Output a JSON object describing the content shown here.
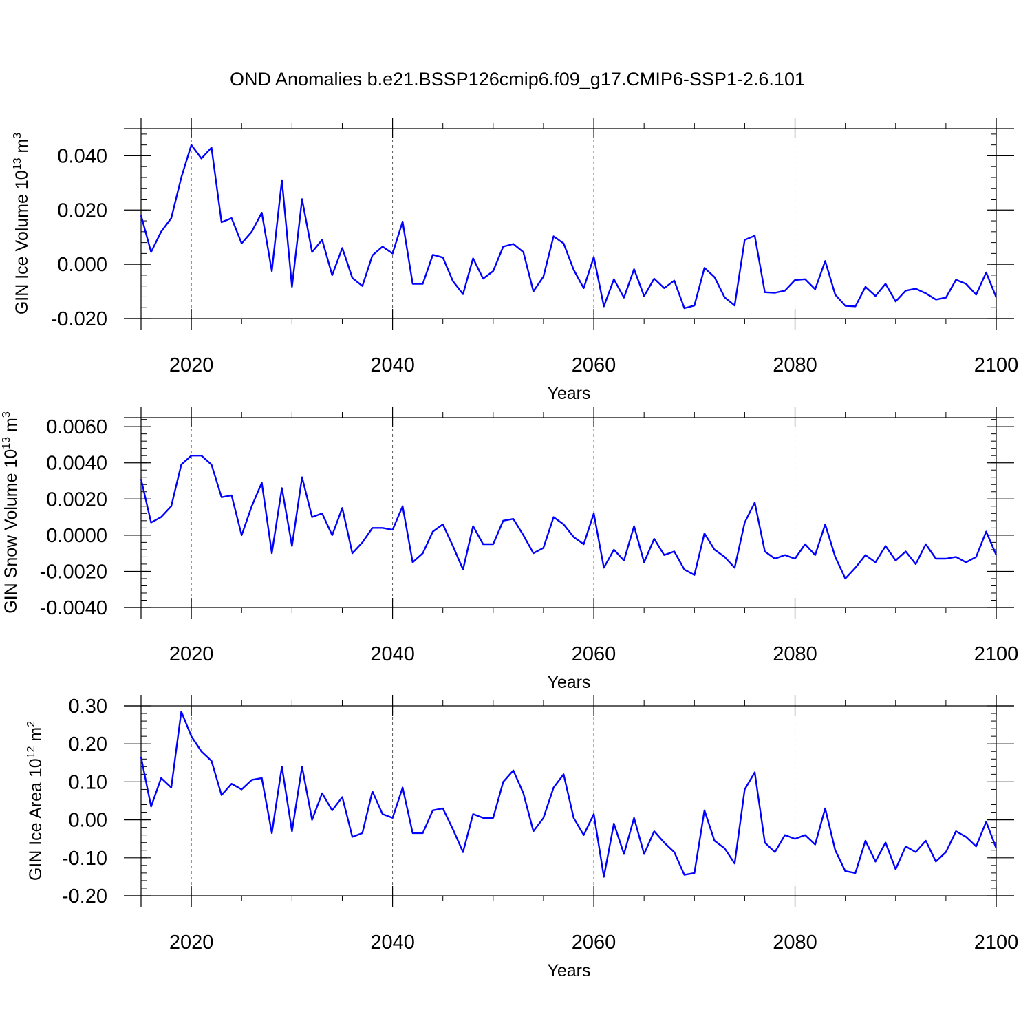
{
  "title": "OND Anomalies b.e21.BSSP126cmip6.f09_g17.CMIP6-SSP1-2.6.101",
  "colors": {
    "line": "#0000ff",
    "axis": "#000000",
    "grid": "#555555"
  },
  "chart_data": [
    {
      "type": "line",
      "ylabel_base": "GIN Ice Volume 10",
      "ylabel_exp": "13",
      "ylabel_unit": " m",
      "ylabel_unit_exp": "3",
      "xlabel": "Years",
      "xlim": [
        2015,
        2100
      ],
      "ylim": [
        -0.02,
        0.05
      ],
      "yticks": [
        -0.02,
        0.0,
        0.02,
        0.04
      ],
      "ytick_labels": [
        "-0.020",
        "0.000",
        "0.020",
        "0.040"
      ],
      "xticks": [
        2020,
        2040,
        2060,
        2080,
        2100
      ],
      "xtick_labels": [
        "2020",
        "2040",
        "2060",
        "2080",
        "2100"
      ],
      "grid": "vertical dashed at major x ticks",
      "x_start": 2015,
      "values": [
        0.018,
        0.0045,
        0.012,
        0.017,
        0.032,
        0.044,
        0.039,
        0.043,
        0.0155,
        0.017,
        0.0077,
        0.012,
        0.019,
        -0.0025,
        0.031,
        -0.0083,
        0.024,
        0.0045,
        0.009,
        -0.004,
        0.006,
        -0.005,
        -0.008,
        0.0033,
        0.0065,
        0.004,
        0.0157,
        -0.0072,
        -0.0072,
        0.0035,
        0.0025,
        -0.0062,
        -0.011,
        0.0022,
        -0.0053,
        -0.0025,
        0.0065,
        0.0075,
        0.0045,
        -0.01,
        -0.0045,
        0.0103,
        0.0077,
        -0.002,
        -0.0088,
        0.0027,
        -0.0155,
        -0.0055,
        -0.0123,
        -0.0018,
        -0.0117,
        -0.0053,
        -0.0088,
        -0.006,
        -0.0162,
        -0.0152,
        -0.0013,
        -0.0047,
        -0.0122,
        -0.0152,
        0.009,
        0.0105,
        -0.0103,
        -0.0105,
        -0.0097,
        -0.0058,
        -0.0055,
        -0.0092,
        0.0012,
        -0.0112,
        -0.0153,
        -0.0155,
        -0.0083,
        -0.0117,
        -0.0072,
        -0.0137,
        -0.0097,
        -0.009,
        -0.0107,
        -0.013,
        -0.0123,
        -0.0057,
        -0.0072,
        -0.0112,
        -0.003,
        -0.0122
      ]
    },
    {
      "type": "line",
      "ylabel_base": "GIN Snow Volume 10",
      "ylabel_exp": "13",
      "ylabel_unit": " m",
      "ylabel_unit_exp": "3",
      "xlabel": "Years",
      "xlim": [
        2015,
        2100
      ],
      "ylim": [
        -0.004,
        0.0065
      ],
      "yticks": [
        -0.004,
        -0.002,
        0.0,
        0.002,
        0.004,
        0.006
      ],
      "ytick_labels": [
        "-0.0040",
        "-0.0020",
        "0.0000",
        "0.0020",
        "0.0040",
        "0.0060"
      ],
      "xticks": [
        2020,
        2040,
        2060,
        2080,
        2100
      ],
      "xtick_labels": [
        "2020",
        "2040",
        "2060",
        "2080",
        "2100"
      ],
      "grid": "vertical dashed at major x ticks",
      "x_start": 2015,
      "values": [
        0.0031,
        0.0007,
        0.001,
        0.0016,
        0.0039,
        0.0044,
        0.0044,
        0.0039,
        0.0021,
        0.0022,
        0.0,
        0.0016,
        0.0029,
        -0.001,
        0.0026,
        -0.0006,
        0.0032,
        0.001,
        0.0012,
        0.0,
        0.0015,
        -0.001,
        -0.0004,
        0.0004,
        0.0004,
        0.0003,
        0.0016,
        -0.0015,
        -0.001,
        0.0002,
        0.0006,
        -0.0006,
        -0.0019,
        0.0005,
        -0.0005,
        -0.0005,
        0.0008,
        0.0009,
        0.0,
        -0.001,
        -0.0007,
        0.001,
        0.0006,
        -0.0001,
        -0.0005,
        0.0012,
        -0.0018,
        -0.0008,
        -0.0014,
        0.0005,
        -0.0015,
        -0.0002,
        -0.0011,
        -0.0009,
        -0.0019,
        -0.0022,
        0.0001,
        -0.0008,
        -0.0012,
        -0.0018,
        0.0007,
        0.0018,
        -0.0009,
        -0.0013,
        -0.0011,
        -0.0013,
        -0.0005,
        -0.0011,
        0.0006,
        -0.0012,
        -0.0024,
        -0.0018,
        -0.0011,
        -0.0015,
        -0.0006,
        -0.0014,
        -0.0009,
        -0.0016,
        -0.0005,
        -0.0013,
        -0.0013,
        -0.0012,
        -0.0015,
        -0.0012,
        0.0002,
        -0.0011
      ]
    },
    {
      "type": "line",
      "ylabel_base": "GIN Ice Area 10",
      "ylabel_exp": "12",
      "ylabel_unit": " m",
      "ylabel_unit_exp": "2",
      "xlabel": "Years",
      "xlim": [
        2015,
        2100
      ],
      "ylim": [
        -0.2,
        0.3
      ],
      "yticks": [
        -0.2,
        -0.1,
        0.0,
        0.1,
        0.2,
        0.3
      ],
      "ytick_labels": [
        "-0.20",
        "-0.10",
        "0.00",
        "0.10",
        "0.20",
        "0.30"
      ],
      "xticks": [
        2020,
        2040,
        2060,
        2080,
        2100
      ],
      "xtick_labels": [
        "2020",
        "2040",
        "2060",
        "2080",
        "2100"
      ],
      "grid": "vertical dashed at major x ticks",
      "x_start": 2015,
      "values": [
        0.165,
        0.035,
        0.11,
        0.085,
        0.285,
        0.22,
        0.18,
        0.155,
        0.065,
        0.095,
        0.08,
        0.105,
        0.11,
        -0.035,
        0.14,
        -0.03,
        0.14,
        0.0,
        0.07,
        0.025,
        0.06,
        -0.045,
        -0.035,
        0.075,
        0.015,
        0.005,
        0.085,
        -0.035,
        -0.035,
        0.025,
        0.03,
        -0.025,
        -0.085,
        0.015,
        0.005,
        0.005,
        0.1,
        0.13,
        0.07,
        -0.03,
        0.005,
        0.085,
        0.12,
        0.005,
        -0.04,
        0.015,
        -0.15,
        -0.01,
        -0.09,
        0.005,
        -0.09,
        -0.03,
        -0.06,
        -0.085,
        -0.145,
        -0.14,
        0.025,
        -0.055,
        -0.075,
        -0.115,
        0.08,
        0.125,
        -0.06,
        -0.085,
        -0.04,
        -0.05,
        -0.04,
        -0.065,
        0.03,
        -0.08,
        -0.135,
        -0.14,
        -0.055,
        -0.11,
        -0.06,
        -0.13,
        -0.07,
        -0.085,
        -0.055,
        -0.11,
        -0.085,
        -0.03,
        -0.045,
        -0.07,
        -0.005,
        -0.075
      ]
    }
  ]
}
